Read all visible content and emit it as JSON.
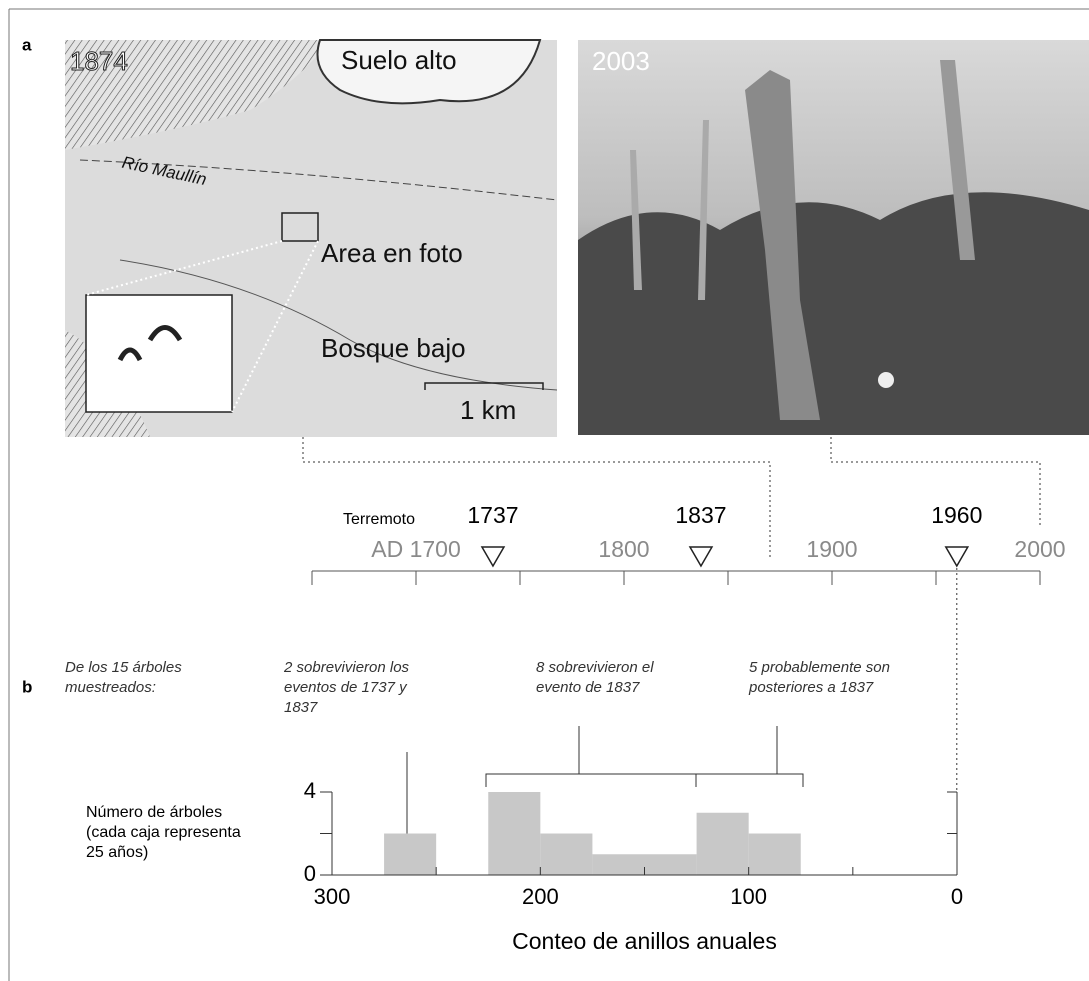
{
  "panel_labels": [
    "a",
    "b"
  ],
  "map": {
    "year": "1874",
    "labels": [
      "Suelo alto",
      "Río Maullín",
      "Area en foto",
      "Bosque bajo",
      "1 km"
    ]
  },
  "photo": {
    "year": "2003"
  },
  "timeline": {
    "label": "Terremoto",
    "events": [
      1737,
      1837,
      1960
    ],
    "xlim": [
      1650,
      2000
    ],
    "xticks": [
      {
        "value": 1700,
        "label": "AD 1700"
      },
      1800,
      1900,
      2000
    ],
    "minor_ticks": [
      1650,
      1750,
      1850,
      1950
    ]
  },
  "chart_data": {
    "type": "histogram",
    "intro": [
      "De los 15 árboles",
      "muestreados:"
    ],
    "annotations": [
      [
        "2 sobrevivieron los",
        "eventos de 1737 y",
        "1837"
      ],
      [
        "8 sobrevivieron el",
        "evento de 1837"
      ],
      [
        "5 probablemente son",
        "posteriores a 1837"
      ]
    ],
    "ylabel": [
      "Número de árboles",
      "(cada caja representa",
      "25 años)"
    ],
    "xlabel": "Conteo de anillos anuales",
    "bins": [
      275,
      250,
      225,
      200,
      175,
      150,
      125,
      100,
      75
    ],
    "values": [
      2,
      0,
      4,
      2,
      1,
      1,
      3,
      2
    ],
    "color": "#c8c8c8",
    "xlim": [
      300,
      0
    ],
    "xticks": [
      300,
      200,
      100,
      0
    ],
    "minor_xticks": [
      250,
      150,
      50
    ],
    "ylim": [
      0,
      4
    ],
    "yticks": [
      0,
      4
    ],
    "minor_yticks": [
      2
    ]
  }
}
